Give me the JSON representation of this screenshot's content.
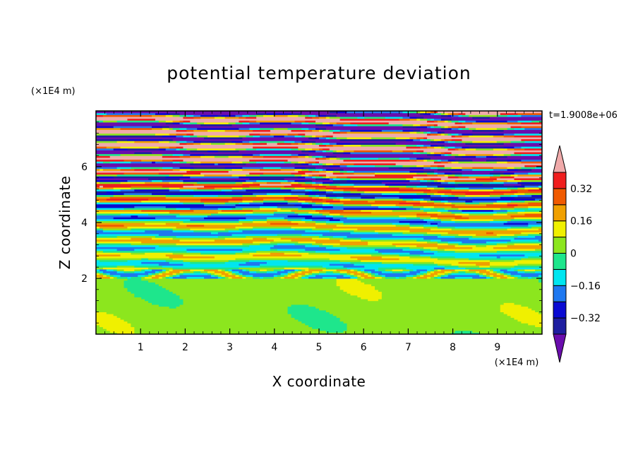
{
  "chart_data": {
    "type": "heatmap",
    "title": "potential temperature deviation",
    "xlabel": "X coordinate",
    "ylabel": "Z coordinate",
    "x_unit": "(×1E4 m)",
    "y_unit": "(×1E4 m)",
    "time_label": "t=1.9008e+06",
    "xlim": [
      0,
      10
    ],
    "ylim": [
      0,
      8
    ],
    "x_ticks": [
      1,
      2,
      3,
      4,
      5,
      6,
      7,
      8,
      9
    ],
    "y_ticks": [
      2,
      4,
      6
    ],
    "x_tick_labels": [
      "1",
      "2",
      "3",
      "4",
      "5",
      "6",
      "7",
      "8",
      "9"
    ],
    "y_tick_labels": [
      "2",
      "4",
      "6"
    ],
    "colorbar": {
      "levels": [
        -0.4,
        -0.32,
        -0.24,
        -0.16,
        -0.08,
        0,
        0.08,
        0.16,
        0.24,
        0.32,
        0.4
      ],
      "colors": [
        "#6a0dad",
        "#1e1ea0",
        "#0a0ad2",
        "#1e78f0",
        "#00e6f0",
        "#1ee68c",
        "#8ce61e",
        "#f0f000",
        "#f0a000",
        "#f05a00",
        "#f01e1e",
        "#f0aaaa"
      ],
      "extend": "both",
      "tick_labels": [
        "0.32",
        "0.16",
        "0",
        "−0.16",
        "−0.32"
      ],
      "tick_values": [
        0.32,
        0.16,
        0,
        -0.16,
        -0.32
      ]
    },
    "grid": false,
    "legend": "colorbar-right"
  }
}
